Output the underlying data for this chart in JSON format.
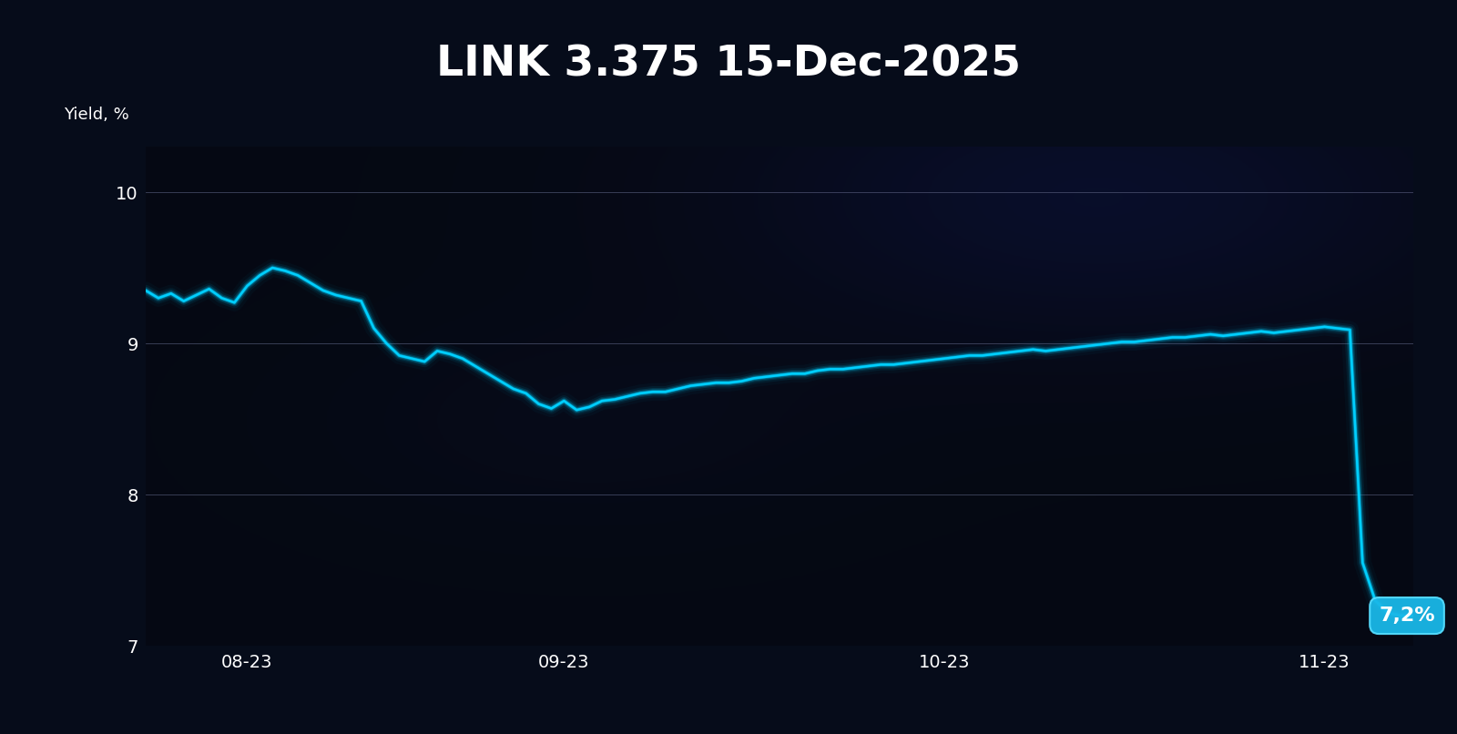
{
  "title": "LINK 3.375 15-Dec-2025",
  "ylabel": "Yield, %",
  "ylim": [
    7,
    10.3
  ],
  "yticks": [
    7,
    8,
    9,
    10
  ],
  "xtick_labels": [
    "08-23",
    "09-23",
    "10-23",
    "11-23"
  ],
  "line_color": "#00CFFF",
  "glow_color": "#00CFFF",
  "label_color": "#ffffff",
  "annotation_text": "7,2%",
  "title_fontsize": 34,
  "label_fontsize": 13,
  "tick_fontsize": 14,
  "x_data": [
    0,
    1,
    2,
    3,
    4,
    5,
    6,
    7,
    8,
    9,
    10,
    11,
    12,
    13,
    14,
    15,
    16,
    17,
    18,
    19,
    20,
    21,
    22,
    23,
    24,
    25,
    26,
    27,
    28,
    29,
    30,
    31,
    32,
    33,
    34,
    35,
    36,
    37,
    38,
    39,
    40,
    41,
    42,
    43,
    44,
    45,
    46,
    47,
    48,
    49,
    50,
    51,
    52,
    53,
    54,
    55,
    56,
    57,
    58,
    59,
    60,
    61,
    62,
    63,
    64,
    65,
    66,
    67,
    68,
    69,
    70,
    71,
    72,
    73,
    74,
    75,
    76,
    77,
    78,
    79,
    80,
    81,
    82,
    83,
    84,
    85,
    86,
    87,
    88,
    89,
    90,
    91,
    92,
    93,
    94,
    95,
    96,
    97,
    98,
    99,
    100
  ],
  "y_data": [
    9.35,
    9.3,
    9.33,
    9.28,
    9.32,
    9.36,
    9.3,
    9.27,
    9.38,
    9.45,
    9.5,
    9.48,
    9.45,
    9.4,
    9.35,
    9.32,
    9.3,
    9.28,
    9.1,
    9.0,
    8.92,
    8.9,
    8.88,
    8.95,
    8.93,
    8.9,
    8.85,
    8.8,
    8.75,
    8.7,
    8.67,
    8.6,
    8.57,
    8.62,
    8.56,
    8.58,
    8.62,
    8.63,
    8.65,
    8.67,
    8.68,
    8.68,
    8.7,
    8.72,
    8.73,
    8.74,
    8.74,
    8.75,
    8.77,
    8.78,
    8.79,
    8.8,
    8.8,
    8.82,
    8.83,
    8.83,
    8.84,
    8.85,
    8.86,
    8.86,
    8.87,
    8.88,
    8.89,
    8.9,
    8.91,
    8.92,
    8.92,
    8.93,
    8.94,
    8.95,
    8.96,
    8.95,
    8.96,
    8.97,
    8.98,
    8.99,
    9.0,
    9.01,
    9.01,
    9.02,
    9.03,
    9.04,
    9.04,
    9.05,
    9.06,
    9.05,
    9.06,
    9.07,
    9.08,
    9.07,
    9.08,
    9.09,
    9.1,
    9.11,
    9.1,
    9.09,
    7.55,
    7.3,
    7.22,
    7.2,
    7.2
  ],
  "xtick_positions": [
    8,
    33,
    63,
    93
  ]
}
